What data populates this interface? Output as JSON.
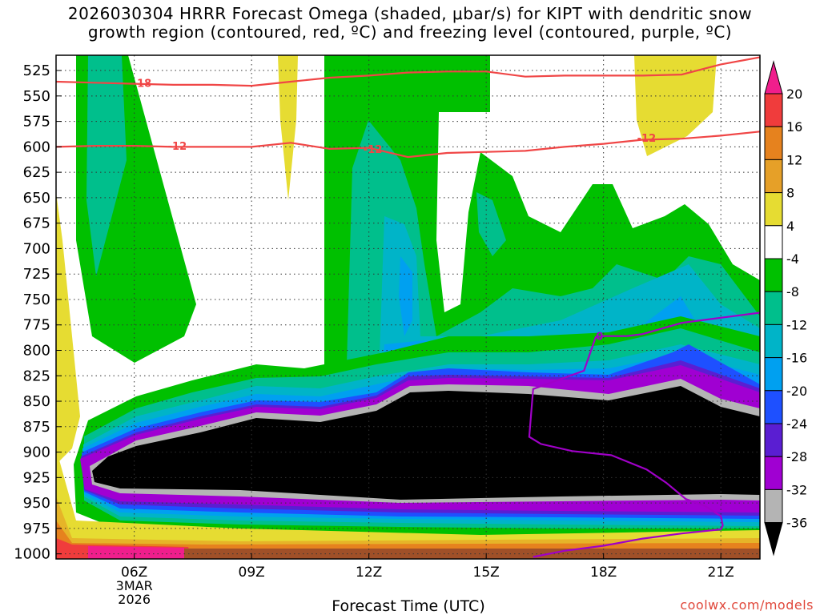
{
  "title_line1": "2026030304 HRRR Forecast Omega (shaded, μbar/s) for KIPT with dendritic snow",
  "title_line2": "growth region (contoured, red, ºC) and freezing level (contoured, purple, ºC)",
  "xlabel": "Forecast Time (UTC)",
  "credit": "coolwx.com/models",
  "colors": {
    "green": "#00c000",
    "teal": "#00bf8c",
    "cyan": "#00b4c8",
    "sky": "#00a0f0",
    "blue": "#1e50ff",
    "violet": "#5a1ed2",
    "indigo": "#6c00c8",
    "purple": "#a000d2",
    "grey": "#b4b4b4",
    "black": "#000000",
    "yellow": "#e6dc32",
    "gold": "#ebb428",
    "orange": "#e6821e",
    "red": "#f03c3c",
    "magenta": "#f01e8c",
    "brown": "#a05028",
    "dgz_line": "#f04646",
    "freeze_line": "#a000c8"
  },
  "chart_data": {
    "type": "heatmap",
    "title": "2026030304 HRRR Forecast Omega (shaded, μbar/s) for KIPT with dendritic snow growth region (contoured, red, ºC) and freezing level (contoured, purple, ºC)",
    "xlabel": "Forecast Time (UTC)",
    "ylabel": "",
    "x_ticks": [
      "06Z",
      "09Z",
      "12Z",
      "15Z",
      "18Z",
      "21Z"
    ],
    "x_tick_hours": [
      6,
      9,
      12,
      15,
      18,
      21
    ],
    "x_date_label": [
      "3MAR",
      "2026"
    ],
    "xlim": [
      4,
      22
    ],
    "y_ticks": [
      525,
      550,
      575,
      600,
      625,
      650,
      675,
      700,
      725,
      750,
      775,
      800,
      825,
      850,
      875,
      900,
      925,
      950,
      975,
      1000
    ],
    "ylim": [
      1005,
      510
    ],
    "grid": true,
    "colorbar": {
      "labels": [
        "20",
        "16",
        "12",
        "8",
        "4",
        "-4",
        "-8",
        "-12",
        "-16",
        "-20",
        "-24",
        "-28",
        "-32",
        "-36"
      ],
      "bin_edges": [
        24,
        20,
        16,
        12,
        8,
        4,
        -4,
        -8,
        -12,
        -16,
        -20,
        -24,
        -28,
        -32,
        -36,
        -40
      ],
      "bin_colors": [
        "#f01e8c",
        "#f03c3c",
        "#e6821e",
        "#e6a028",
        "#e6dc32",
        "#ffffff",
        "#00c000",
        "#00bf8c",
        "#00b4c8",
        "#00a0f0",
        "#1e50ff",
        "#5a1ed2",
        "#a000d2",
        "#b4b4b4",
        "#000000"
      ]
    },
    "dgz_contours": [
      {
        "label": "-18",
        "label_at": [
          6.2,
          537
        ],
        "x": [
          4,
          5,
          6,
          7,
          8,
          9,
          10,
          11,
          12,
          13,
          14,
          15,
          16,
          17,
          18,
          19,
          20,
          21,
          22
        ],
        "y": [
          536,
          537,
          538,
          539,
          539,
          540,
          536,
          532,
          530,
          527,
          526,
          526,
          531,
          530,
          530,
          530,
          529,
          519,
          512
        ]
      },
      {
        "label": "-12",
        "label_at": [
          7.1,
          599
        ],
        "label2": "-12",
        "label2_at": [
          12.1,
          602
        ],
        "label3": "-12",
        "label3_at": [
          19.1,
          591
        ],
        "x": [
          4,
          5,
          6,
          7,
          8,
          9,
          10,
          11,
          12,
          13,
          14,
          15,
          16,
          17,
          18,
          19,
          20,
          21,
          22
        ],
        "y": [
          600,
          599,
          599,
          600,
          600,
          600,
          596,
          602,
          601,
          610,
          606,
          605,
          604,
          600,
          597,
          593,
          592,
          589,
          585
        ]
      }
    ],
    "freezing_level": {
      "label": "0",
      "label_at": [
        17.9,
        786
      ],
      "x": [
        22,
        21,
        20,
        19,
        18.6,
        18,
        17.8,
        17.5,
        16.2,
        16.1,
        16.4,
        17.2,
        18.2,
        19.1,
        19.6,
        20.1,
        20.6,
        21,
        21.05,
        21,
        20,
        19,
        18,
        17,
        16.2
      ],
      "y": [
        763,
        768,
        773,
        784,
        786,
        786,
        787,
        820,
        838,
        885,
        892,
        899,
        903,
        917,
        930,
        946,
        953,
        963,
        972,
        976,
        980,
        985,
        992,
        997,
        1003
      ]
    }
  }
}
